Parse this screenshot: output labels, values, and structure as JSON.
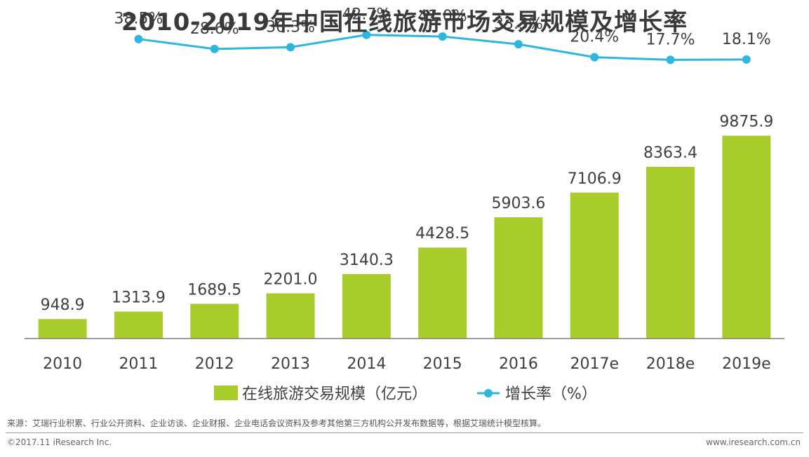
{
  "colors": {
    "bar": "#a8cc2a",
    "line": "#2db7df",
    "axis": "#7f7f7f",
    "text": "#404040"
  },
  "chart_data": {
    "type": "bar",
    "title": "2010-2019年中国在线旅游市场交易规模及增长率",
    "categories": [
      "2010",
      "2011",
      "2012",
      "2013",
      "2014",
      "2015",
      "2016",
      "2017e",
      "2018e",
      "2019e"
    ],
    "series": [
      {
        "name": "在线旅游交易规模（亿元）",
        "type": "bar",
        "values": [
          948.9,
          1313.9,
          1689.5,
          2201.0,
          3140.3,
          4428.5,
          5903.6,
          7106.9,
          8363.4,
          9875.9
        ],
        "labels": [
          "948.9",
          "1313.9",
          "1689.5",
          "2201.0",
          "3140.3",
          "4428.5",
          "5903.6",
          "7106.9",
          "8363.4",
          "9875.9"
        ]
      },
      {
        "name": "增长率（%）",
        "type": "line",
        "values": [
          null,
          38.5,
          28.6,
          30.3,
          42.7,
          41.0,
          33.3,
          20.4,
          17.7,
          18.1
        ],
        "labels": [
          "",
          "38.5%",
          "28.6%",
          "30.3%",
          "42.7%",
          "41.0%",
          "33.3%",
          "20.4%",
          "17.7%",
          "18.1%"
        ]
      }
    ],
    "ylim": [
      0,
      10000
    ],
    "y2lim": [
      -150,
      60
    ],
    "grid": false,
    "legend_position": "bottom"
  },
  "footer": {
    "source": "来源：艾瑞行业积累、行业公开资料、企业访谈、企业财报、企业电话会议资料及参考其他第三方机构公开发布数据等，根据艾瑞统计模型核算。",
    "copyright": "©2017.11 iResearch Inc.",
    "website": "www.iresearch.com.cn"
  }
}
